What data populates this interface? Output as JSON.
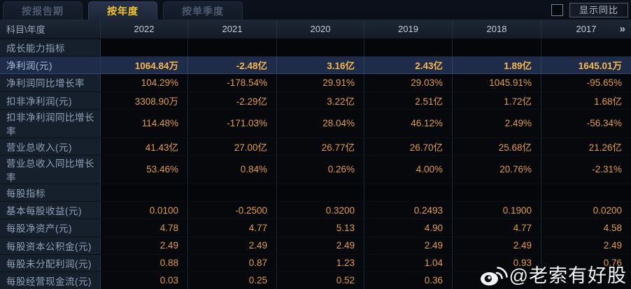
{
  "tabs": [
    {
      "label": "按报告期",
      "active": false
    },
    {
      "label": "按年度",
      "active": true
    },
    {
      "label": "按单季度",
      "active": false
    }
  ],
  "controls": {
    "checkbox_checked": false,
    "show_yoy_label": "显示同比"
  },
  "table": {
    "corner_header": "科目\\年度",
    "year_columns": [
      "2022",
      "2021",
      "2020",
      "2019",
      "2018",
      "2017"
    ],
    "more_columns_icon": "»",
    "rows": [
      {
        "type": "section",
        "label": "成长能力指标",
        "highlight": false,
        "values": [
          "",
          "",
          "",
          "",
          "",
          ""
        ]
      },
      {
        "type": "data",
        "label": "净利润(元)",
        "highlight": true,
        "values": [
          "1064.84万",
          "-2.48亿",
          "3.16亿",
          "2.43亿",
          "1.89亿",
          "1645.01万"
        ]
      },
      {
        "type": "data",
        "label": "净利润同比增长率",
        "highlight": false,
        "values": [
          "104.29%",
          "-178.54%",
          "29.91%",
          "29.03%",
          "1045.91%",
          "-95.65%"
        ]
      },
      {
        "type": "data",
        "label": "扣非净利润(元)",
        "highlight": false,
        "values": [
          "3308.90万",
          "-2.29亿",
          "3.22亿",
          "2.51亿",
          "1.72亿",
          "1.68亿"
        ]
      },
      {
        "type": "data",
        "label": "扣非净利润同比增长率",
        "highlight": false,
        "values": [
          "114.48%",
          "-171.03%",
          "28.04%",
          "46.12%",
          "2.49%",
          "-56.34%"
        ]
      },
      {
        "type": "data",
        "label": "营业总收入(元)",
        "highlight": false,
        "values": [
          "41.43亿",
          "27.00亿",
          "26.77亿",
          "26.70亿",
          "25.68亿",
          "21.26亿"
        ]
      },
      {
        "type": "data",
        "label": "营业总收入同比增长率",
        "highlight": false,
        "values": [
          "53.46%",
          "0.84%",
          "0.26%",
          "4.00%",
          "20.76%",
          "-2.31%"
        ]
      },
      {
        "type": "section",
        "label": "每股指标",
        "highlight": false,
        "values": [
          "",
          "",
          "",
          "",
          "",
          ""
        ]
      },
      {
        "type": "data",
        "label": "基本每股收益(元)",
        "highlight": false,
        "values": [
          "0.0100",
          "-0.2500",
          "0.3200",
          "0.2493",
          "0.1900",
          "0.0200"
        ]
      },
      {
        "type": "data",
        "label": "每股净资产(元)",
        "highlight": false,
        "values": [
          "4.78",
          "4.77",
          "5.13",
          "4.90",
          "4.77",
          "4.58"
        ]
      },
      {
        "type": "data",
        "label": "每股资本公积金(元)",
        "highlight": false,
        "values": [
          "2.49",
          "2.49",
          "2.49",
          "2.49",
          "2.49",
          "2.49"
        ]
      },
      {
        "type": "data",
        "label": "每股未分配利润(元)",
        "highlight": false,
        "values": [
          "0.88",
          "0.87",
          "1.23",
          "1.04",
          "0.93",
          "0.76"
        ]
      },
      {
        "type": "data",
        "label": "每股经营现金流(元)",
        "highlight": false,
        "values": [
          "0.03",
          "0.25",
          "0.52",
          "0.36",
          "",
          ""
        ]
      }
    ]
  },
  "watermark": {
    "icon": "weibo-icon",
    "text": "@老索有好股"
  },
  "colors": {
    "value_gold": "#e39d40",
    "highlight_row_bg": "#1e2c49",
    "highlight_value_gold": "#f6b84e",
    "active_tab_gold": "#f8c62c",
    "label_cell_bg": "#161f2c",
    "data_cell_bg": "#06080c",
    "watermark_white": "#f5f5f5"
  }
}
